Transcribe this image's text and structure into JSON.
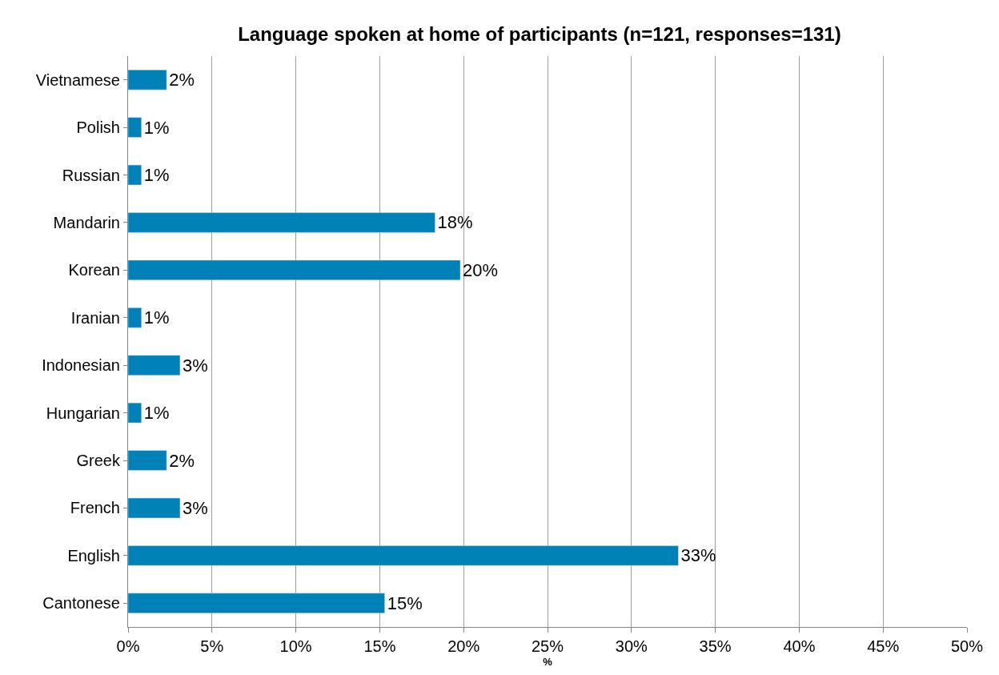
{
  "chart_data": {
    "type": "bar",
    "orientation": "horizontal",
    "title": "Language spoken at home of participants (n=121, responses=131)",
    "xlabel": "%",
    "categories": [
      "Vietnamese",
      "Polish",
      "Russian",
      "Mandarin",
      "Korean",
      "Iranian",
      "Indonesian",
      "Hungarian",
      "Greek",
      "French",
      "English",
      "Cantonese"
    ],
    "values": [
      2.3,
      0.8,
      0.8,
      18.3,
      19.8,
      0.8,
      3.1,
      0.8,
      2.3,
      3.1,
      32.8,
      15.3
    ],
    "value_labels": [
      "2%",
      "1%",
      "1%",
      "18%",
      "20%",
      "1%",
      "3%",
      "1%",
      "2%",
      "3%",
      "33%",
      "15%"
    ],
    "color": "#0081b8",
    "xlim": [
      0,
      50
    ],
    "xticks": [
      {
        "value": 0,
        "label": "0%"
      },
      {
        "value": 5,
        "label": "5%"
      },
      {
        "value": 10,
        "label": "10%"
      },
      {
        "value": 15,
        "label": "15%"
      },
      {
        "value": 20,
        "label": "20%"
      },
      {
        "value": 25,
        "label": "25%"
      },
      {
        "value": 30,
        "label": "30%"
      },
      {
        "value": 35,
        "label": "35%"
      },
      {
        "value": 40,
        "label": "40%"
      },
      {
        "value": 45,
        "label": "45%"
      },
      {
        "value": 50,
        "label": "50%"
      }
    ],
    "grid": "x",
    "legend": false
  }
}
